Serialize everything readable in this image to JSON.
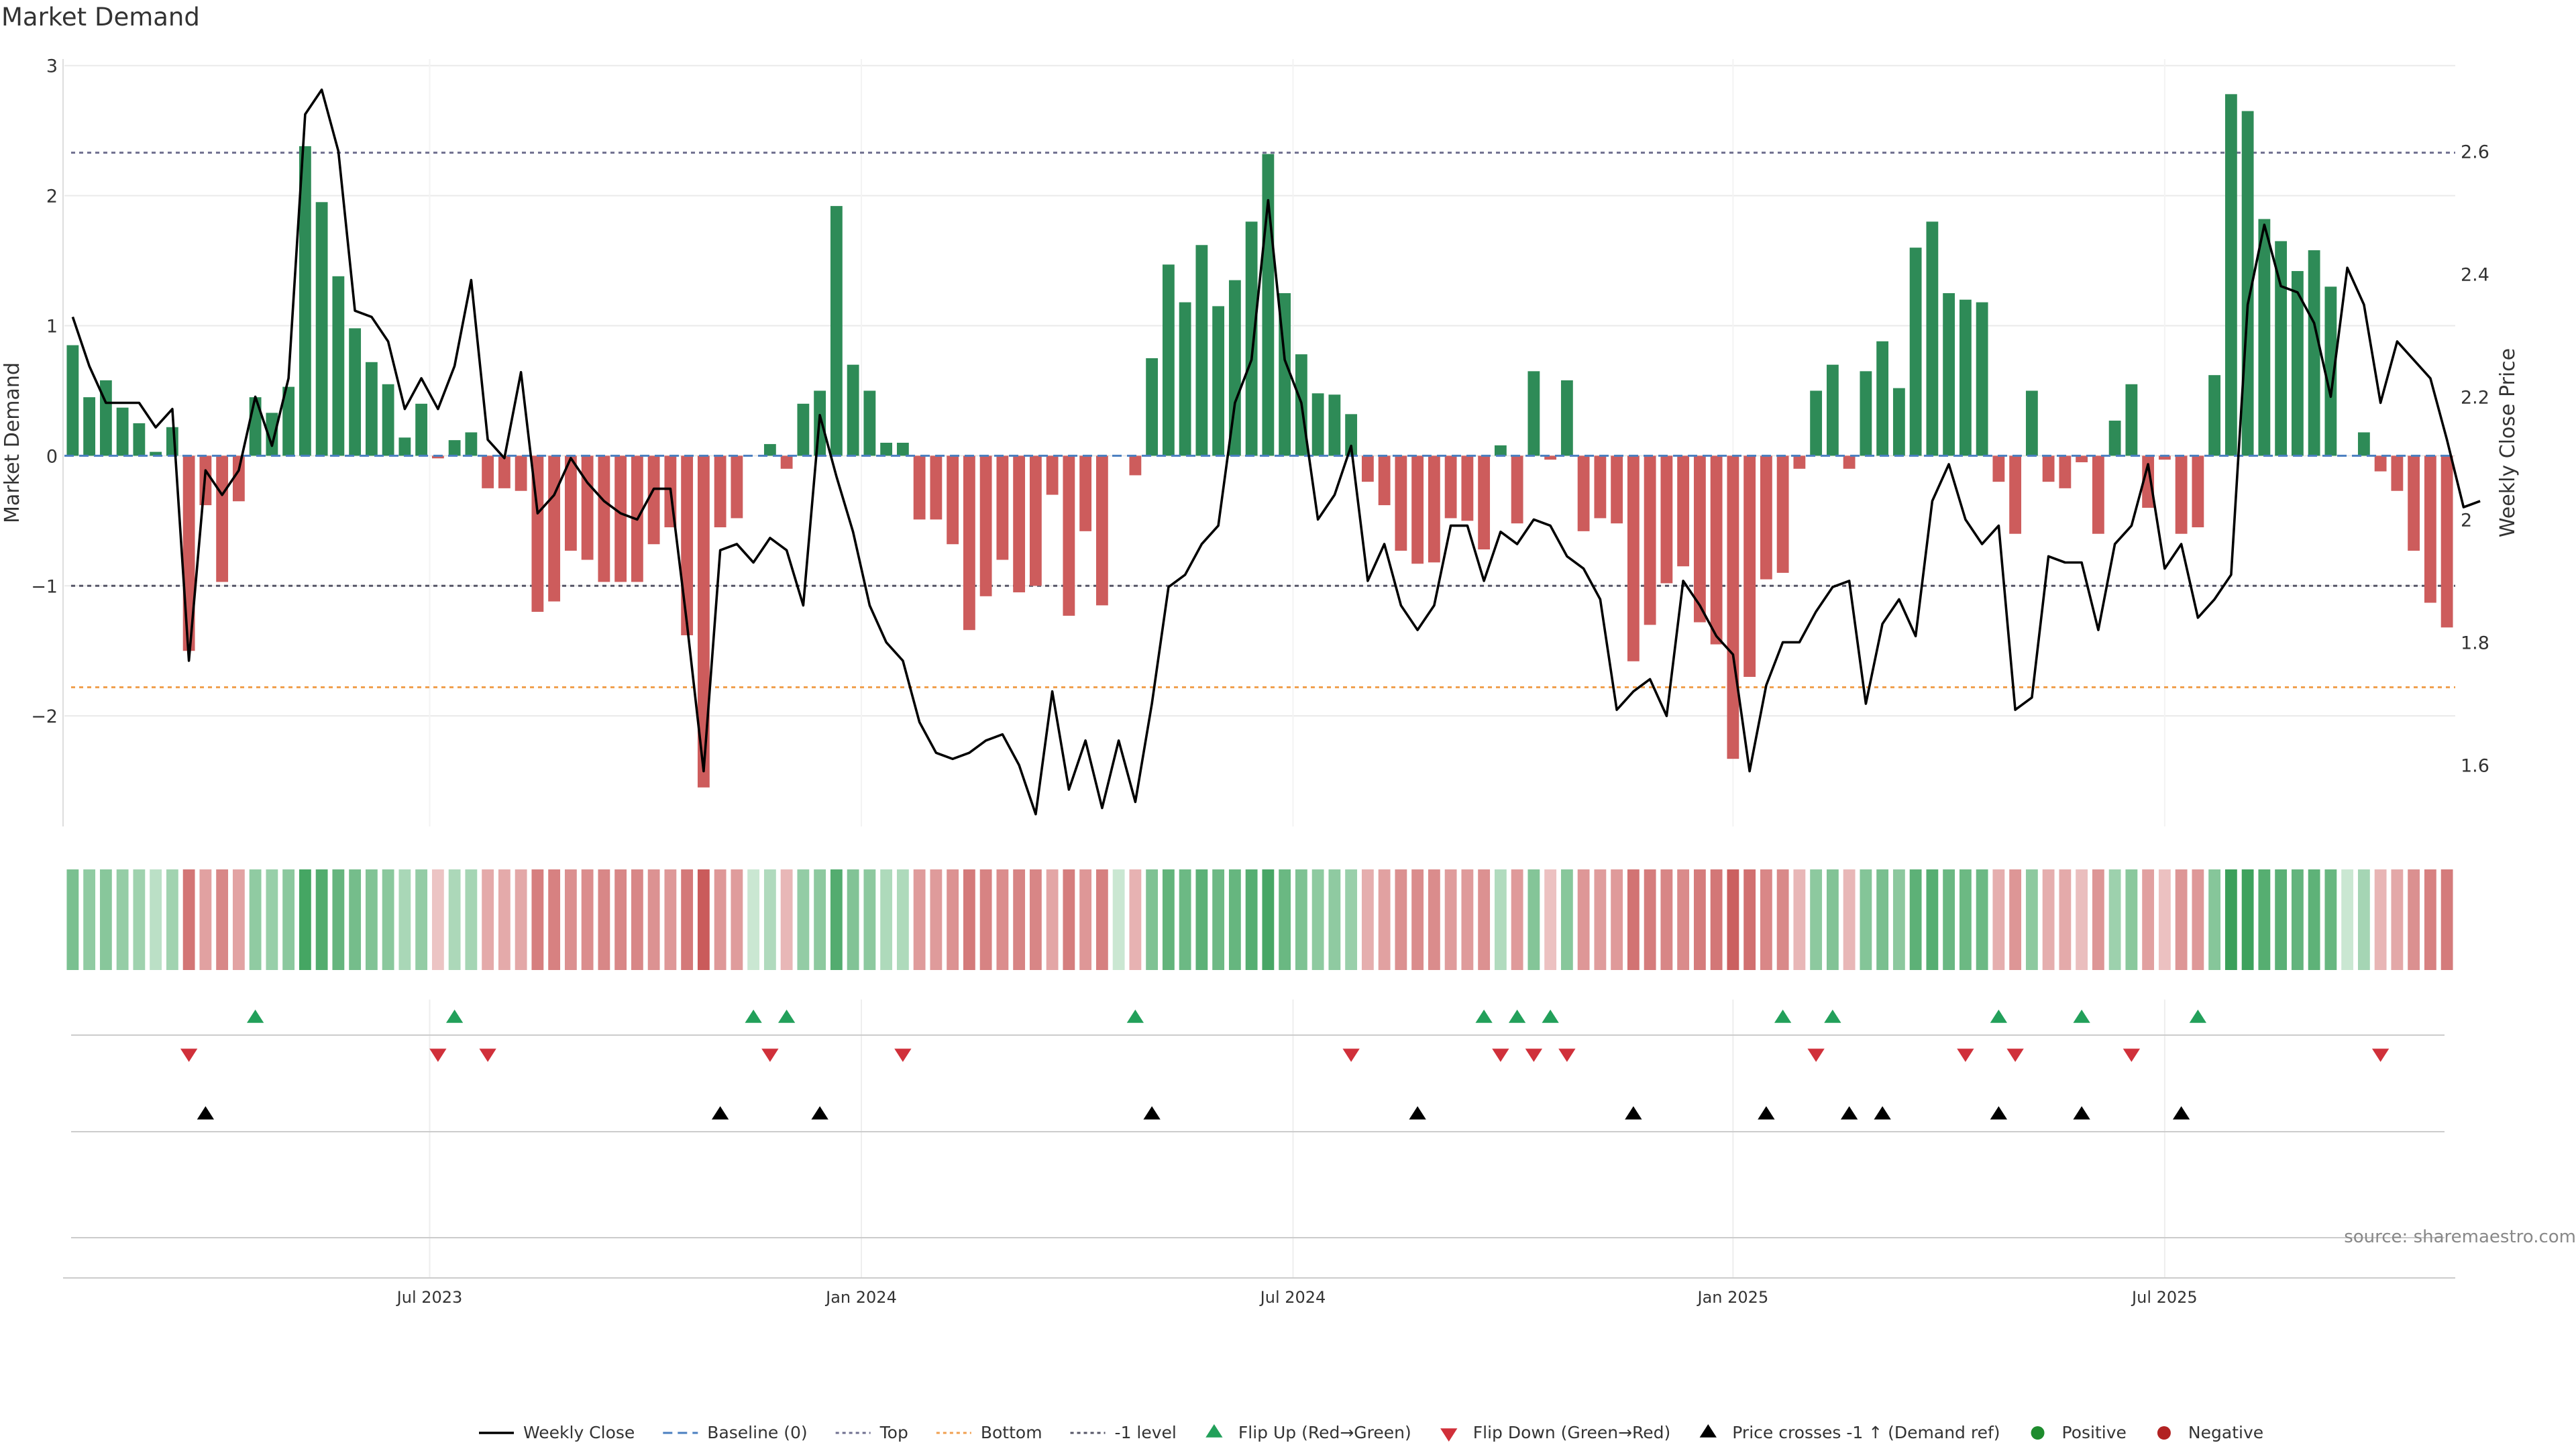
{
  "title": "Market Demand",
  "source": "source: sharemaestro.com",
  "colors": {
    "pos_bar": "#2e8b57",
    "neg_bar": "#cd5c5c",
    "price": "#000000",
    "baseline": "#4a7fc0",
    "top": "#6f6f8f",
    "bottom": "#f0a050",
    "minus_one": "#555566",
    "flip_up": "#22a05a",
    "flip_down": "#d0303a",
    "cross": "#000000",
    "positive_dot": "#1e8c2e",
    "negative_dot": "#b22222",
    "grid": "#eaeaea",
    "axis_text": "#333333"
  },
  "chart_data": {
    "type": "bar",
    "title": "Market Demand",
    "ylabel": "Market Demand",
    "y2label": "Weekly Close Price",
    "ylim": [
      -2.85,
      3.05
    ],
    "y2lim": [
      1.5,
      2.75
    ],
    "yticks": [
      3,
      2,
      1,
      0,
      -1,
      -2
    ],
    "ytick_labels": [
      "3",
      "2",
      "1",
      "0",
      "−1",
      "−2"
    ],
    "y2ticks": [
      2.6,
      2.4,
      2.2,
      2.0,
      1.8,
      1.6
    ],
    "y2tick_labels": [
      "2.6",
      "2.4",
      "2.2",
      "2",
      "1.8",
      "1.6"
    ],
    "xlim": [
      0,
      144
    ],
    "xticks": [
      22,
      48,
      74,
      100.5,
      126.5
    ],
    "xtick_labels": [
      "Jul 2023",
      "Jan 2024",
      "Jul 2024",
      "Jan 2025",
      "Jul 2025"
    ],
    "reference_lines": {
      "top": 2.33,
      "bottom": -1.78,
      "minus_one": -1.0,
      "baseline": 0
    },
    "demand": [
      0.85,
      0.45,
      0.58,
      0.37,
      0.25,
      0.03,
      0.22,
      -1.5,
      -0.38,
      -0.97,
      -0.35,
      0.45,
      0.33,
      0.53,
      2.38,
      1.95,
      1.38,
      0.98,
      0.72,
      0.55,
      0.14,
      0.4,
      -0.02,
      0.12,
      0.18,
      -0.25,
      -0.25,
      -0.27,
      -1.2,
      -1.12,
      -0.73,
      -0.8,
      -0.97,
      -0.97,
      -0.97,
      -0.68,
      -0.55,
      -1.38,
      -2.55,
      -0.55,
      -0.48,
      0.0,
      0.09,
      -0.1,
      0.4,
      0.5,
      1.92,
      0.7,
      0.5,
      0.1,
      0.1,
      -0.49,
      -0.49,
      -0.68,
      -1.34,
      -1.08,
      -0.8,
      -1.05,
      -1.0,
      -0.3,
      -1.23,
      -0.58,
      -1.15,
      0.0,
      -0.15,
      0.75,
      1.47,
      1.18,
      1.62,
      1.15,
      1.35,
      1.8,
      2.32,
      1.25,
      0.78,
      0.48,
      0.47,
      0.32,
      -0.2,
      -0.38,
      -0.73,
      -0.83,
      -0.82,
      -0.48,
      -0.5,
      -0.72,
      0.08,
      -0.52,
      0.65,
      -0.03,
      0.58,
      -0.58,
      -0.48,
      -0.52,
      -1.58,
      -1.3,
      -0.98,
      -0.85,
      -1.28,
      -1.45,
      -2.33,
      -1.7,
      -0.95,
      -0.9,
      -0.1,
      0.5,
      0.7,
      -0.1,
      0.65,
      0.88,
      0.52,
      1.6,
      1.8,
      1.25,
      1.2,
      1.18,
      -0.2,
      -0.6,
      0.5,
      -0.2,
      -0.25,
      -0.05,
      -0.6,
      0.27,
      0.55,
      -0.4,
      -0.03,
      -0.6,
      -0.55,
      0.62,
      2.78,
      2.65,
      1.82,
      1.65,
      1.42,
      1.58,
      1.3,
      0.0,
      0.18,
      -0.12,
      -0.27,
      -0.73,
      -1.13,
      -1.32
    ],
    "price": [
      2.33,
      2.25,
      2.19,
      2.19,
      2.19,
      2.15,
      2.18,
      1.77,
      2.08,
      2.04,
      2.08,
      2.2,
      2.12,
      2.23,
      2.66,
      2.7,
      2.6,
      2.34,
      2.33,
      2.29,
      2.18,
      2.23,
      2.18,
      2.25,
      2.39,
      2.13,
      2.1,
      2.24,
      2.01,
      2.04,
      2.1,
      2.06,
      2.03,
      2.01,
      2.0,
      2.05,
      2.05,
      1.83,
      1.59,
      1.95,
      1.96,
      1.93,
      1.97,
      1.95,
      1.86,
      2.17,
      2.07,
      1.98,
      1.86,
      1.8,
      1.77,
      1.67,
      1.62,
      1.61,
      1.62,
      1.64,
      1.65,
      1.6,
      1.52,
      1.72,
      1.56,
      1.64,
      1.53,
      1.64,
      1.54,
      1.7,
      1.89,
      1.91,
      1.96,
      1.99,
      2.19,
      2.26,
      2.52,
      2.26,
      2.19,
      2.0,
      2.04,
      2.12,
      1.9,
      1.96,
      1.86,
      1.82,
      1.86,
      1.99,
      1.99,
      1.9,
      1.98,
      1.96,
      2.0,
      1.99,
      1.94,
      1.92,
      1.87,
      1.69,
      1.72,
      1.74,
      1.68,
      1.9,
      1.86,
      1.81,
      1.78,
      1.59,
      1.73,
      1.8,
      1.8,
      1.85,
      1.89,
      1.9,
      1.7,
      1.83,
      1.87,
      1.81,
      2.03,
      2.09,
      2.0,
      1.96,
      1.99,
      1.69,
      1.71,
      1.94,
      1.93,
      1.93,
      1.82,
      1.96,
      1.99,
      2.09,
      1.92,
      1.96,
      1.84,
      1.87,
      1.91,
      2.35,
      2.48,
      2.38,
      2.37,
      2.32,
      2.2,
      2.41,
      2.35,
      2.19,
      2.29,
      2.26,
      2.23,
      2.13,
      2.02,
      2.03
    ],
    "flip_up_index": [
      11,
      23,
      41,
      43,
      64,
      85,
      87,
      89,
      103,
      106,
      116,
      121,
      128
    ],
    "flip_down_index": [
      7,
      22,
      25,
      42,
      50,
      77,
      86,
      88,
      90,
      105,
      114,
      117,
      124,
      139
    ],
    "price_cross_index": [
      8,
      39,
      45,
      65,
      81,
      94,
      102,
      107,
      109,
      116,
      121,
      127
    ],
    "heatmap": {
      "type": "heatmap",
      "values_source": "demand",
      "description": "Per-week intensity strip colored by demand sign and magnitude"
    }
  },
  "legend": [
    {
      "kind": "line",
      "label": "Weekly Close",
      "color_key": "price"
    },
    {
      "kind": "dash",
      "label": "Baseline (0)",
      "color_key": "baseline"
    },
    {
      "kind": "dot-line",
      "label": "Top",
      "color_key": "top"
    },
    {
      "kind": "dot-line",
      "label": "Bottom",
      "color_key": "bottom"
    },
    {
      "kind": "dot-line",
      "label": "-1 level",
      "color_key": "minus_one"
    },
    {
      "kind": "tri-up",
      "label": "Flip Up (Red→Green)",
      "color_key": "flip_up"
    },
    {
      "kind": "tri-down",
      "label": "Flip Down (Green→Red)",
      "color_key": "flip_down"
    },
    {
      "kind": "tri-up",
      "label": "Price crosses -1 ↑ (Demand ref)",
      "color_key": "cross"
    },
    {
      "kind": "dot",
      "label": "Positive",
      "color_key": "positive_dot"
    },
    {
      "kind": "dot",
      "label": "Negative",
      "color_key": "negative_dot"
    }
  ]
}
